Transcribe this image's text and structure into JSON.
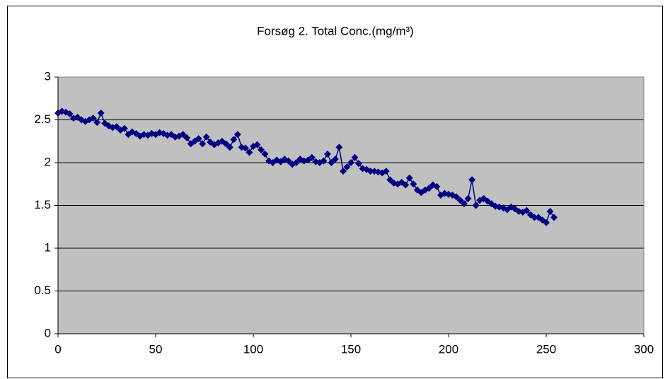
{
  "chart_data": {
    "type": "scatter",
    "title": "Forsøg 2. Total Conc.(mg/m³)",
    "x": [
      0,
      2,
      4,
      6,
      8,
      10,
      12,
      14,
      16,
      18,
      20,
      22,
      24,
      26,
      28,
      30,
      32,
      34,
      36,
      38,
      40,
      42,
      44,
      46,
      48,
      50,
      52,
      54,
      56,
      58,
      60,
      62,
      64,
      66,
      68,
      70,
      72,
      74,
      76,
      78,
      80,
      82,
      84,
      86,
      88,
      90,
      92,
      94,
      96,
      98,
      100,
      102,
      104,
      106,
      108,
      110,
      112,
      114,
      116,
      118,
      120,
      122,
      124,
      126,
      128,
      130,
      132,
      134,
      136,
      138,
      140,
      142,
      144,
      146,
      148,
      150,
      152,
      154,
      156,
      158,
      160,
      162,
      164,
      166,
      168,
      170,
      172,
      174,
      176,
      178,
      180,
      182,
      184,
      186,
      188,
      190,
      192,
      194,
      196,
      198,
      200,
      202,
      204,
      206,
      208,
      210,
      212,
      214,
      216,
      218,
      220,
      222,
      224,
      226,
      228,
      230,
      232,
      234,
      236,
      238,
      240,
      242,
      244,
      246,
      248,
      250,
      252,
      254
    ],
    "series": [
      {
        "color": "#000080",
        "values": [
          2.58,
          2.6,
          2.59,
          2.57,
          2.52,
          2.53,
          2.5,
          2.48,
          2.5,
          2.52,
          2.47,
          2.58,
          2.46,
          2.43,
          2.41,
          2.42,
          2.38,
          2.4,
          2.33,
          2.36,
          2.34,
          2.31,
          2.33,
          2.32,
          2.34,
          2.33,
          2.35,
          2.34,
          2.32,
          2.33,
          2.3,
          2.31,
          2.33,
          2.29,
          2.22,
          2.25,
          2.28,
          2.22,
          2.3,
          2.24,
          2.21,
          2.23,
          2.25,
          2.22,
          2.18,
          2.27,
          2.33,
          2.18,
          2.17,
          2.12,
          2.19,
          2.21,
          2.15,
          2.1,
          2.02,
          2.0,
          2.03,
          2.01,
          2.04,
          2.02,
          1.98,
          2.0,
          2.04,
          2.02,
          2.03,
          2.06,
          2.01,
          2.0,
          2.02,
          2.1,
          2.0,
          2.04,
          2.18,
          1.9,
          1.95,
          2.0,
          2.06,
          1.99,
          1.93,
          1.92,
          1.9,
          1.9,
          1.89,
          1.88,
          1.9,
          1.8,
          1.76,
          1.75,
          1.77,
          1.74,
          1.82,
          1.75,
          1.68,
          1.65,
          1.68,
          1.7,
          1.74,
          1.72,
          1.62,
          1.64,
          1.63,
          1.62,
          1.6,
          1.56,
          1.52,
          1.58,
          1.8,
          1.5,
          1.56,
          1.58,
          1.55,
          1.52,
          1.49,
          1.48,
          1.47,
          1.45,
          1.48,
          1.46,
          1.43,
          1.42,
          1.44,
          1.39,
          1.36,
          1.36,
          1.33,
          1.3,
          1.43,
          1.36
        ]
      }
    ],
    "xlim": [
      0,
      300
    ],
    "xticks": [
      0,
      50,
      100,
      150,
      200,
      250,
      300
    ],
    "ylim": [
      0,
      3
    ],
    "yticks": [
      0,
      0.5,
      1,
      1.5,
      2,
      2.5,
      3
    ],
    "grid": true,
    "plot_background": "#c0c0c0"
  }
}
